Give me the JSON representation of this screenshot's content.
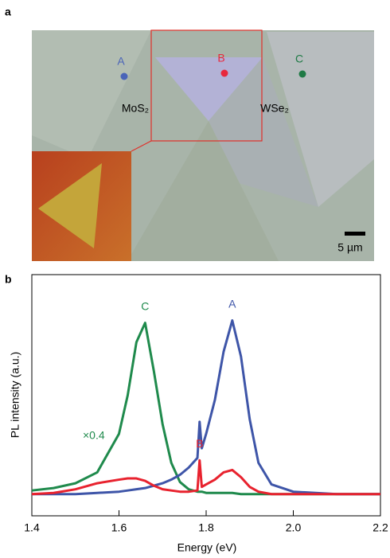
{
  "panel_a": {
    "label": "a",
    "points": [
      {
        "label": "A",
        "color": "#4a64b8"
      },
      {
        "label": "B",
        "color": "#e8283c"
      },
      {
        "label": "C",
        "color": "#1f7a45"
      }
    ],
    "materials": [
      "MoS₂",
      "WSe₂"
    ],
    "scale_bar": "5 µm"
  },
  "chart_data": {
    "type": "line",
    "panel_label": "b",
    "xlabel": "Energy (eV)",
    "ylabel": "PL intensity (a.u.)",
    "annotations": [
      "×0.4"
    ],
    "x": [
      1.4,
      1.45,
      1.5,
      1.55,
      1.6,
      1.62,
      1.64,
      1.66,
      1.68,
      1.7,
      1.72,
      1.74,
      1.76,
      1.78,
      1.785,
      1.79,
      1.8,
      1.82,
      1.84,
      1.86,
      1.88,
      1.9,
      1.92,
      1.95,
      2.0,
      2.1,
      2.2
    ],
    "series": [
      {
        "name": "C",
        "color": "#1f8a4c",
        "values": [
          0.105,
          0.115,
          0.135,
          0.18,
          0.34,
          0.5,
          0.72,
          0.8,
          0.6,
          0.38,
          0.22,
          0.14,
          0.11,
          0.1,
          0.1,
          0.1,
          0.095,
          0.095,
          0.095,
          0.095,
          0.09,
          0.09,
          0.09,
          0.09,
          0.09,
          0.09,
          0.09
        ]
      },
      {
        "name": "A",
        "color": "#3e55a8",
        "values": [
          0.09,
          0.09,
          0.09,
          0.095,
          0.1,
          0.105,
          0.11,
          0.115,
          0.125,
          0.135,
          0.15,
          0.17,
          0.2,
          0.24,
          0.39,
          0.28,
          0.34,
          0.48,
          0.68,
          0.81,
          0.66,
          0.4,
          0.22,
          0.13,
          0.1,
          0.09,
          0.09
        ]
      },
      {
        "name": "B",
        "color": "#e8222e",
        "values": [
          0.09,
          0.095,
          0.11,
          0.135,
          0.15,
          0.155,
          0.155,
          0.145,
          0.125,
          0.11,
          0.105,
          0.1,
          0.1,
          0.105,
          0.23,
          0.12,
          0.13,
          0.15,
          0.18,
          0.19,
          0.16,
          0.12,
          0.1,
          0.09,
          0.09,
          0.09,
          0.09
        ]
      }
    ],
    "xlim": [
      1.4,
      2.2
    ],
    "xticks": [
      1.4,
      1.6,
      1.8,
      {
        "value": 2,
        "label": "2.0"
      },
      2.2
    ],
    "ylim": [
      0,
      1
    ]
  }
}
